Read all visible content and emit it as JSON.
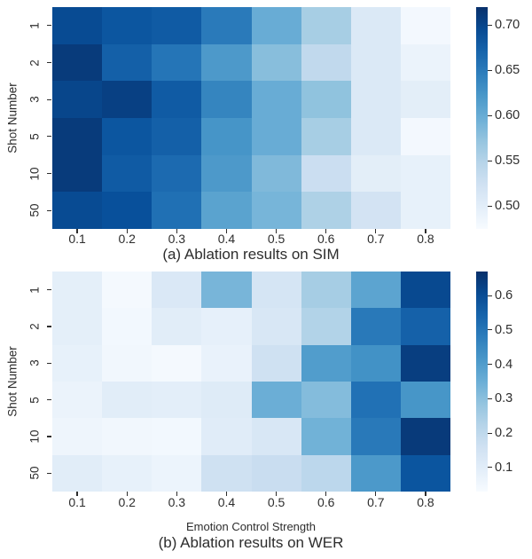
{
  "figure": {
    "background": "#ffffff",
    "text_color": "#2d2d2d"
  },
  "chart_data": [
    {
      "type": "heatmap",
      "title": "(a) Ablation results on SIM",
      "xlabel": "",
      "ylabel": "Shot Number",
      "x_ticks": [
        "0.1",
        "0.2",
        "0.3",
        "0.4",
        "0.5",
        "0.6",
        "0.7",
        "0.8"
      ],
      "y_ticks": [
        "1",
        "2",
        "3",
        "5",
        "10",
        "50"
      ],
      "colormap": "Blues",
      "vmin": 0.475,
      "vmax": 0.72,
      "colorbar_ticks": [
        0.7,
        0.65,
        0.6,
        0.55,
        0.5
      ],
      "colorbar_tick_labels": [
        "0.70",
        "0.65",
        "0.60",
        "0.55",
        "0.50"
      ],
      "values": [
        [
          0.695,
          0.685,
          0.68,
          0.65,
          0.6,
          0.56,
          0.51,
          0.48
        ],
        [
          0.71,
          0.675,
          0.655,
          0.62,
          0.58,
          0.54,
          0.51,
          0.49
        ],
        [
          0.7,
          0.705,
          0.68,
          0.64,
          0.6,
          0.575,
          0.51,
          0.5
        ],
        [
          0.71,
          0.685,
          0.675,
          0.625,
          0.6,
          0.56,
          0.51,
          0.48
        ],
        [
          0.71,
          0.68,
          0.665,
          0.62,
          0.585,
          0.53,
          0.5,
          0.495
        ],
        [
          0.695,
          0.69,
          0.66,
          0.61,
          0.59,
          0.555,
          0.52,
          0.495
        ]
      ]
    },
    {
      "type": "heatmap",
      "title": "(b) Ablation results on WER",
      "xlabel": "Emotion Control Strength",
      "ylabel": "Shot Number",
      "x_ticks": [
        "0.1",
        "0.2",
        "0.3",
        "0.4",
        "0.5",
        "0.6",
        "0.7",
        "0.8"
      ],
      "y_ticks": [
        "1",
        "2",
        "3",
        "5",
        "10",
        "50"
      ],
      "colormap": "Blues",
      "vmin": 0.03,
      "vmax": 0.67,
      "colorbar_ticks": [
        0.6,
        0.5,
        0.4,
        0.3,
        0.2,
        0.1
      ],
      "colorbar_tick_labels": [
        "0.6",
        "0.5",
        "0.4",
        "0.3",
        "0.2",
        "0.1"
      ],
      "values": [
        [
          0.09,
          0.04,
          0.125,
          0.33,
          0.14,
          0.255,
          0.38,
          0.61
        ],
        [
          0.09,
          0.045,
          0.1,
          0.085,
          0.13,
          0.23,
          0.49,
          0.55
        ],
        [
          0.08,
          0.05,
          0.04,
          0.075,
          0.16,
          0.4,
          0.43,
          0.635
        ],
        [
          0.07,
          0.1,
          0.095,
          0.11,
          0.35,
          0.31,
          0.51,
          0.42
        ],
        [
          0.06,
          0.05,
          0.045,
          0.105,
          0.13,
          0.34,
          0.49,
          0.645
        ],
        [
          0.1,
          0.08,
          0.065,
          0.16,
          0.18,
          0.21,
          0.41,
          0.58
        ]
      ]
    }
  ]
}
